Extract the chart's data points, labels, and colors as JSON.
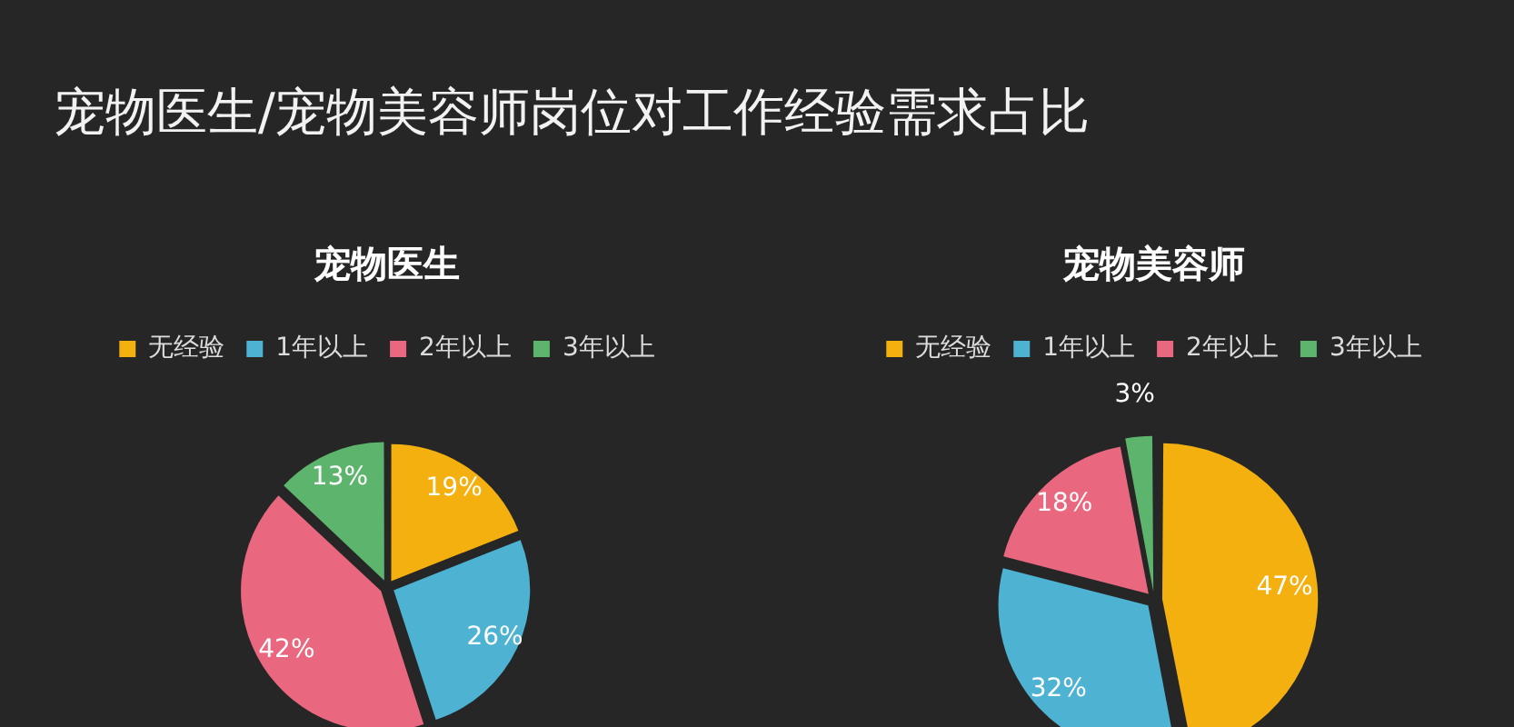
{
  "chart_data": [
    {
      "type": "other",
      "title": "宠物医生/宠物美容师岗位对工作经验需求占比"
    },
    {
      "type": "pie",
      "title": "宠物医生",
      "categories": [
        "无经验",
        "1年以上",
        "2年以上",
        "3年以上"
      ],
      "values": [
        19,
        26,
        42,
        13
      ],
      "colors": [
        "#f3b00f",
        "#4eb3d3",
        "#e9687f",
        "#5db56d"
      ],
      "value_labels": [
        "19%",
        "26%",
        "42%",
        "13%"
      ],
      "legend": "top"
    },
    {
      "type": "pie",
      "title": "宠物美容师",
      "categories": [
        "无经验",
        "1年以上",
        "2年以上",
        "3年以上"
      ],
      "values": [
        47,
        32,
        18,
        3
      ],
      "colors": [
        "#f3b00f",
        "#4eb3d3",
        "#e9687f",
        "#5db56d"
      ],
      "value_labels": [
        "47%",
        "32%",
        "18%",
        "3%"
      ],
      "legend": "top"
    }
  ]
}
